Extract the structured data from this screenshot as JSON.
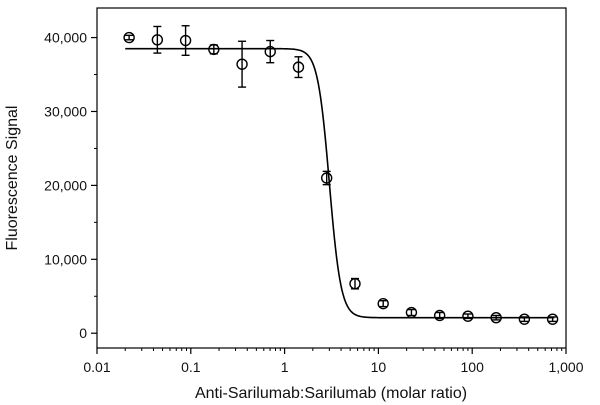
{
  "chart_data": {
    "type": "scatter",
    "title": "",
    "xlabel": "Anti-Sarilumab:Sarilumab (molar ratio)",
    "ylabel": "Fluorescence Signal",
    "x_scale": "log",
    "xlim": [
      0.01,
      1000
    ],
    "ylim": [
      -2000,
      44000
    ],
    "x_ticks": [
      0.01,
      0.1,
      1,
      10,
      100,
      1000
    ],
    "x_tick_labels": [
      "0.01",
      "0.1",
      "1",
      "10",
      "100",
      "1,000"
    ],
    "y_ticks": [
      0,
      10000,
      20000,
      30000,
      40000
    ],
    "y_tick_labels": [
      "0",
      "10,000",
      "20,000",
      "30,000",
      "40,000"
    ],
    "grid": false,
    "legend": "none",
    "series": [
      {
        "marker": "open-circle",
        "x": [
          0.022,
          0.044,
          0.088,
          0.176,
          0.352,
          0.703,
          1.406,
          2.81,
          5.63,
          11.25,
          22.5,
          45.0,
          90.0,
          180.0,
          360.0,
          720.0
        ],
        "y": [
          40000,
          39700,
          39600,
          38400,
          36400,
          38100,
          36000,
          21000,
          6700,
          4000,
          2800,
          2400,
          2300,
          2100,
          1900,
          1900
        ],
        "error": [
          300,
          1800,
          2000,
          600,
          3100,
          1500,
          1400,
          900,
          700,
          400,
          400,
          400,
          300,
          300,
          300,
          300
        ]
      },
      {
        "style": "line",
        "fit": "four-parameter logistic",
        "top": 38500,
        "bottom": 2100,
        "ec50": 3.0,
        "hill_slope": 7
      }
    ],
    "colors": {
      "ink": "#000000",
      "background": "#ffffff"
    }
  }
}
